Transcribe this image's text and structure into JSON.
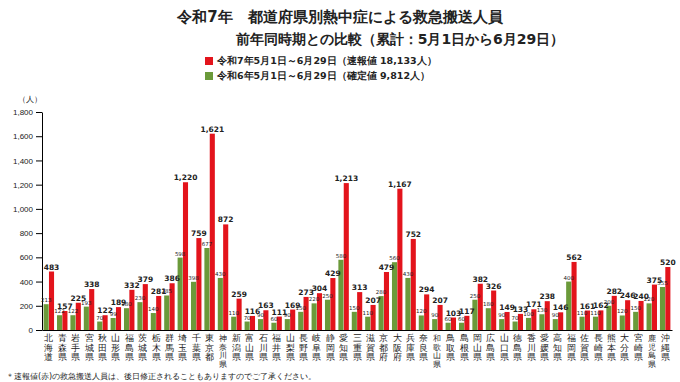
{
  "chart_data": {
    "type": "bar",
    "title": "令和7年　都道府県別熱中症による救急搬送人員",
    "subtitle": "前年同時期との比較（累計：5月1日から6月29日）",
    "y_label": "（人）",
    "annotations": [
      "＊速報値(赤)の救急搬送人員は、後日修正されることもありますのでご了承ください。"
    ],
    "categories": [
      "北海道",
      "青森県",
      "岩手県",
      "宮城県",
      "秋田県",
      "山形県",
      "福島県",
      "茨城県",
      "栃木県",
      "群馬県",
      "埼玉県",
      "千葉県",
      "東京都",
      "神奈川県",
      "新潟県",
      "富山県",
      "石川県",
      "福井県",
      "山梨県",
      "長野県",
      "岐阜県",
      "静岡県",
      "愛知県",
      "三重県",
      "滋賀県",
      "京都府",
      "大阪府",
      "兵庫県",
      "奈良県",
      "和歌山県",
      "鳥取県",
      "島根県",
      "岡山県",
      "広島県",
      "山口県",
      "徳島県",
      "香川県",
      "愛媛県",
      "高知県",
      "福岡県",
      "佐賀県",
      "長崎県",
      "熊本県",
      "大分県",
      "宮崎県",
      "鹿児島県",
      "沖縄県"
    ],
    "series": [
      {
        "name": "令和7年5月1日～6月29日（速報値 18,133人）",
        "color": "#e3141c",
        "values": [
          483,
          157,
          225,
          338,
          122,
          189,
          332,
          379,
          281,
          386,
          1220,
          759,
          1621,
          872,
          259,
          116,
          163,
          111,
          169,
          273,
          304,
          429,
          1213,
          313,
          207,
          479,
          1167,
          752,
          294,
          207,
          103,
          117,
          382,
          326,
          149,
          133,
          171,
          238,
          146,
          562,
          161,
          162,
          282,
          246,
          240,
          375,
          520
        ],
        "value_labels": [
          "483",
          "157",
          "225",
          "338",
          "122",
          "189",
          "332",
          "379",
          "281",
          "386",
          "1,220",
          "759",
          "1,621",
          "872",
          "259",
          "116",
          "163",
          "111",
          "169",
          "273",
          "304",
          "429",
          "1,213",
          "313",
          "207",
          "479",
          "1,167",
          "752",
          "294",
          "207",
          "103",
          "117",
          "382",
          "326",
          "149",
          "133",
          "171",
          "238",
          "146",
          "562",
          "161",
          "162",
          "282",
          "246",
          "240",
          "375",
          "520"
        ]
      },
      {
        "name": "令和6年5月1日～6月29日（確定値 9,812人）",
        "color": "#6b9a3a",
        "values": [
          213,
          122,
          122,
          193,
          70,
          99,
          180,
          230,
          140,
          285,
          598,
          398,
          677,
          430,
          110,
          70,
          90,
          60,
          90,
          150,
          220,
          250,
          580,
          150,
          110,
          280,
          560,
          430,
          120,
          90,
          60,
          60,
          250,
          180,
          90,
          70,
          100,
          130,
          90,
          400,
          110,
          110,
          200,
          120,
          150,
          220,
          355
        ]
      }
    ],
    "ylim": [
      0,
      1800
    ],
    "yticks": [
      0,
      200,
      400,
      600,
      800,
      {
        "value": 1000,
        "label": "1,000"
      },
      {
        "value": 1200,
        "label": "1,200"
      },
      {
        "value": 1400,
        "label": "1,400"
      },
      {
        "value": 1600,
        "label": "1,600"
      },
      {
        "value": 1800,
        "label": "1,800"
      }
    ],
    "grid": false,
    "legend": "top",
    "data_labels": true
  }
}
